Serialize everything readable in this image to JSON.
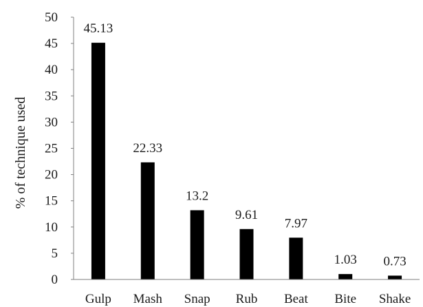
{
  "chart_data": {
    "type": "bar",
    "title": "",
    "xlabel": "",
    "ylabel": "% of technique used",
    "categories": [
      "Gulp",
      "Mash",
      "Snap",
      "Rub",
      "Beat",
      "Bite",
      "Shake"
    ],
    "values": [
      45.13,
      22.33,
      13.2,
      9.61,
      7.97,
      1.03,
      0.73
    ],
    "data_labels": [
      "45.13",
      "22.33",
      "13.2",
      "9.61",
      "7.97",
      "1.03",
      "0.73"
    ],
    "ylim": [
      0,
      50
    ],
    "yticks": [
      0,
      5,
      10,
      15,
      20,
      25,
      30,
      35,
      40,
      45,
      50
    ],
    "ytick_labels": [
      "0",
      "5",
      "10",
      "15",
      "20",
      "25",
      "30",
      "35",
      "40",
      "45",
      "50"
    ],
    "grid": false,
    "legend": "none",
    "bar_color": "#000000",
    "axis_color": "#7f7f7f"
  }
}
